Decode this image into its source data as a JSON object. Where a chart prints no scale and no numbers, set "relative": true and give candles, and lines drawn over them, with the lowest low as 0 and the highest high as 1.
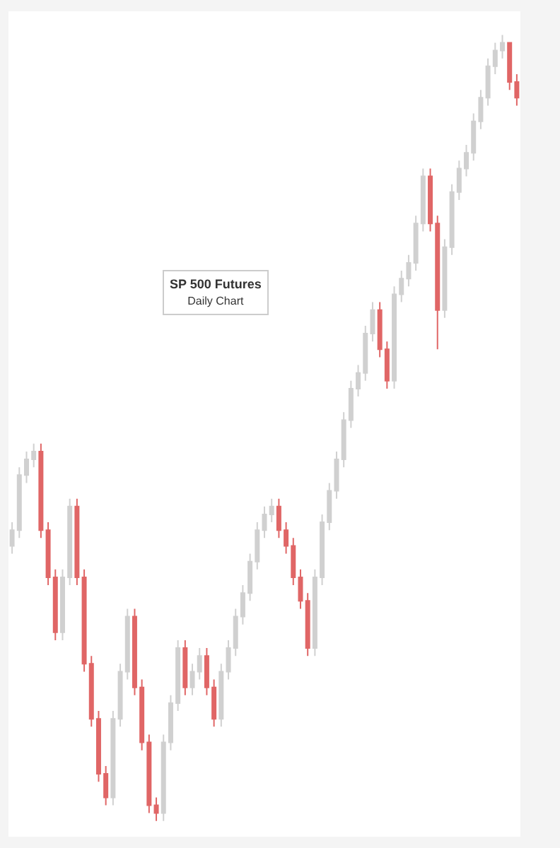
{
  "chart_data": {
    "type": "candlestick",
    "title": "SP 500 Futures",
    "subtitle": "Daily Chart",
    "relative": true,
    "colors": [
      "#d0d0d0",
      "#d0d0d0",
      "#d0d0d0",
      "#d0d0d0",
      "#e06666",
      "#e06666",
      "#e06666",
      "#d0d0d0",
      "#d0d0d0",
      "#e06666",
      "#e06666",
      "#e06666",
      "#e06666",
      "#e06666",
      "#d0d0d0",
      "#d0d0d0",
      "#d0d0d0",
      "#e06666",
      "#e06666",
      "#e06666",
      "#e06666",
      "#d0d0d0",
      "#d0d0d0",
      "#d0d0d0",
      "#e06666",
      "#d0d0d0",
      "#d0d0d0",
      "#e06666",
      "#e06666",
      "#d0d0d0",
      "#d0d0d0",
      "#d0d0d0",
      "#d0d0d0",
      "#d0d0d0",
      "#d0d0d0",
      "#d0d0d0",
      "#d0d0d0",
      "#e06666",
      "#e06666",
      "#e06666",
      "#e06666",
      "#e06666",
      "#d0d0d0",
      "#d0d0d0",
      "#d0d0d0",
      "#d0d0d0",
      "#d0d0d0",
      "#d0d0d0",
      "#d0d0d0",
      "#d0d0d0",
      "#d0d0d0",
      "#e06666",
      "#e06666",
      "#d0d0d0",
      "#d0d0d0",
      "#d0d0d0",
      "#d0d0d0",
      "#d0d0d0",
      "#e06666",
      "#e06666",
      "#d0d0d0",
      "#d0d0d0",
      "#d0d0d0",
      "#d0d0d0",
      "#d0d0d0",
      "#d0d0d0",
      "#d0d0d0",
      "#d0d0d0",
      "#d0d0d0",
      "#e06666",
      "#e06666"
    ],
    "categories": [
      null,
      null,
      null,
      null,
      null,
      null,
      null,
      null,
      null,
      null,
      null,
      null,
      null,
      null,
      null,
      null,
      null,
      null,
      null,
      null,
      null,
      null,
      null,
      null,
      null,
      null,
      null,
      null,
      null,
      null,
      null,
      null,
      null,
      null,
      null,
      null,
      null,
      null,
      null,
      null,
      null,
      null,
      null,
      null,
      null,
      null,
      null,
      null,
      null,
      null,
      null,
      null,
      null,
      null,
      null,
      null,
      null,
      null,
      null,
      null,
      null,
      null,
      null,
      null,
      null,
      null,
      null,
      null,
      null,
      null,
      null
    ],
    "ohlc": [
      [
        0.35,
        0.38,
        0.34,
        0.37
      ],
      [
        0.37,
        0.45,
        0.36,
        0.44
      ],
      [
        0.44,
        0.47,
        0.43,
        0.46
      ],
      [
        0.46,
        0.48,
        0.45,
        0.47
      ],
      [
        0.47,
        0.48,
        0.36,
        0.37
      ],
      [
        0.37,
        0.38,
        0.3,
        0.31
      ],
      [
        0.31,
        0.32,
        0.23,
        0.24
      ],
      [
        0.24,
        0.32,
        0.23,
        0.31
      ],
      [
        0.31,
        0.41,
        0.3,
        0.4
      ],
      [
        0.4,
        0.41,
        0.3,
        0.31
      ],
      [
        0.31,
        0.32,
        0.19,
        0.2
      ],
      [
        0.2,
        0.21,
        0.12,
        0.13
      ],
      [
        0.13,
        0.14,
        0.05,
        0.06
      ],
      [
        0.06,
        0.07,
        0.02,
        0.03
      ],
      [
        0.03,
        0.14,
        0.02,
        0.13
      ],
      [
        0.13,
        0.2,
        0.12,
        0.19
      ],
      [
        0.19,
        0.27,
        0.18,
        0.26
      ],
      [
        0.26,
        0.27,
        0.16,
        0.17
      ],
      [
        0.17,
        0.18,
        0.09,
        0.1
      ],
      [
        0.1,
        0.11,
        0.01,
        0.02
      ],
      [
        0.02,
        0.03,
        0,
        0.01
      ],
      [
        0.01,
        0.11,
        0,
        0.1
      ],
      [
        0.1,
        0.16,
        0.09,
        0.15
      ],
      [
        0.15,
        0.23,
        0.14,
        0.22
      ],
      [
        0.22,
        0.23,
        0.16,
        0.17
      ],
      [
        0.17,
        0.2,
        0.16,
        0.19
      ],
      [
        0.19,
        0.22,
        0.18,
        0.21
      ],
      [
        0.21,
        0.22,
        0.16,
        0.17
      ],
      [
        0.17,
        0.18,
        0.12,
        0.13
      ],
      [
        0.13,
        0.2,
        0.12,
        0.19
      ],
      [
        0.19,
        0.23,
        0.18,
        0.22
      ],
      [
        0.22,
        0.27,
        0.21,
        0.26
      ],
      [
        0.26,
        0.3,
        0.25,
        0.29
      ],
      [
        0.29,
        0.34,
        0.28,
        0.33
      ],
      [
        0.33,
        0.38,
        0.32,
        0.37
      ],
      [
        0.37,
        0.4,
        0.36,
        0.39
      ],
      [
        0.39,
        0.41,
        0.38,
        0.4
      ],
      [
        0.4,
        0.41,
        0.36,
        0.37
      ],
      [
        0.37,
        0.38,
        0.34,
        0.35
      ],
      [
        0.35,
        0.36,
        0.3,
        0.31
      ],
      [
        0.31,
        0.32,
        0.27,
        0.28
      ],
      [
        0.28,
        0.29,
        0.21,
        0.22
      ],
      [
        0.22,
        0.32,
        0.21,
        0.31
      ],
      [
        0.31,
        0.39,
        0.3,
        0.38
      ],
      [
        0.38,
        0.43,
        0.37,
        0.42
      ],
      [
        0.42,
        0.47,
        0.41,
        0.46
      ],
      [
        0.46,
        0.52,
        0.45,
        0.51
      ],
      [
        0.51,
        0.56,
        0.5,
        0.55
      ],
      [
        0.55,
        0.58,
        0.54,
        0.57
      ],
      [
        0.57,
        0.63,
        0.56,
        0.62
      ],
      [
        0.62,
        0.66,
        0.61,
        0.65
      ],
      [
        0.65,
        0.66,
        0.59,
        0.6
      ],
      [
        0.6,
        0.61,
        0.55,
        0.56
      ],
      [
        0.56,
        0.68,
        0.55,
        0.67
      ],
      [
        0.67,
        0.7,
        0.66,
        0.69
      ],
      [
        0.69,
        0.72,
        0.68,
        0.71
      ],
      [
        0.71,
        0.77,
        0.7,
        0.76
      ],
      [
        0.76,
        0.83,
        0.75,
        0.82
      ],
      [
        0.82,
        0.83,
        0.75,
        0.76
      ],
      [
        0.76,
        0.77,
        0.6,
        0.65
      ],
      [
        0.65,
        0.74,
        0.64,
        0.73
      ],
      [
        0.73,
        0.81,
        0.72,
        0.8
      ],
      [
        0.8,
        0.84,
        0.79,
        0.83
      ],
      [
        0.83,
        0.86,
        0.82,
        0.85
      ],
      [
        0.85,
        0.9,
        0.84,
        0.89
      ],
      [
        0.89,
        0.93,
        0.88,
        0.92
      ],
      [
        0.92,
        0.97,
        0.91,
        0.96
      ],
      [
        0.96,
        0.99,
        0.95,
        0.98
      ],
      [
        0.98,
        1,
        0.97,
        0.99
      ],
      [
        0.99,
        0.99,
        0.93,
        0.94
      ],
      [
        0.94,
        0.95,
        0.91,
        0.92
      ]
    ]
  }
}
